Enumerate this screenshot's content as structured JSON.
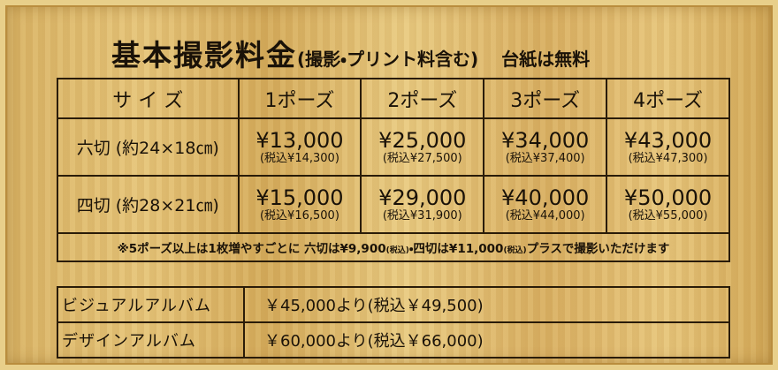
{
  "header": {
    "title": "基本撮影料金",
    "subtitle": "(撮影・プリント料含む)",
    "note": "台紙は無料"
  },
  "price_table": {
    "columns": [
      "サ イ ズ",
      "1ポーズ",
      "2ポーズ",
      "3ポーズ",
      "4ポーズ"
    ],
    "rows": [
      {
        "size": "六切 (約24×18㎝)",
        "prices": [
          {
            "price": "¥13,000",
            "tax_included": "(税込¥14,300)"
          },
          {
            "price": "¥25,000",
            "tax_included": "(税込¥27,500)"
          },
          {
            "price": "¥34,000",
            "tax_included": "(税込¥37,400)"
          },
          {
            "price": "¥43,000",
            "tax_included": "(税込¥47,300)"
          }
        ]
      },
      {
        "size": "四切 (約28×21㎝)",
        "prices": [
          {
            "price": "¥15,000",
            "tax_included": "(税込¥16,500)"
          },
          {
            "price": "¥29,000",
            "tax_included": "(税込¥31,900)"
          },
          {
            "price": "¥40,000",
            "tax_included": "(税込¥44,000)"
          },
          {
            "price": "¥50,000",
            "tax_included": "(税込¥55,000)"
          }
        ]
      }
    ],
    "footnote": [
      "※5ポーズ以上は1枚増やすごとに 六切は¥9,900",
      "(税込)",
      "・四切は¥11,000",
      "(税込)",
      "プラスで撮影いただけます"
    ]
  },
  "album_table": {
    "rows": [
      {
        "name": "ビジュアルアルバム",
        "price": "￥45,000より(税込￥49,500)"
      },
      {
        "name": "デザインアルバム",
        "price": "￥60,000より(税込￥66,000)"
      }
    ]
  }
}
